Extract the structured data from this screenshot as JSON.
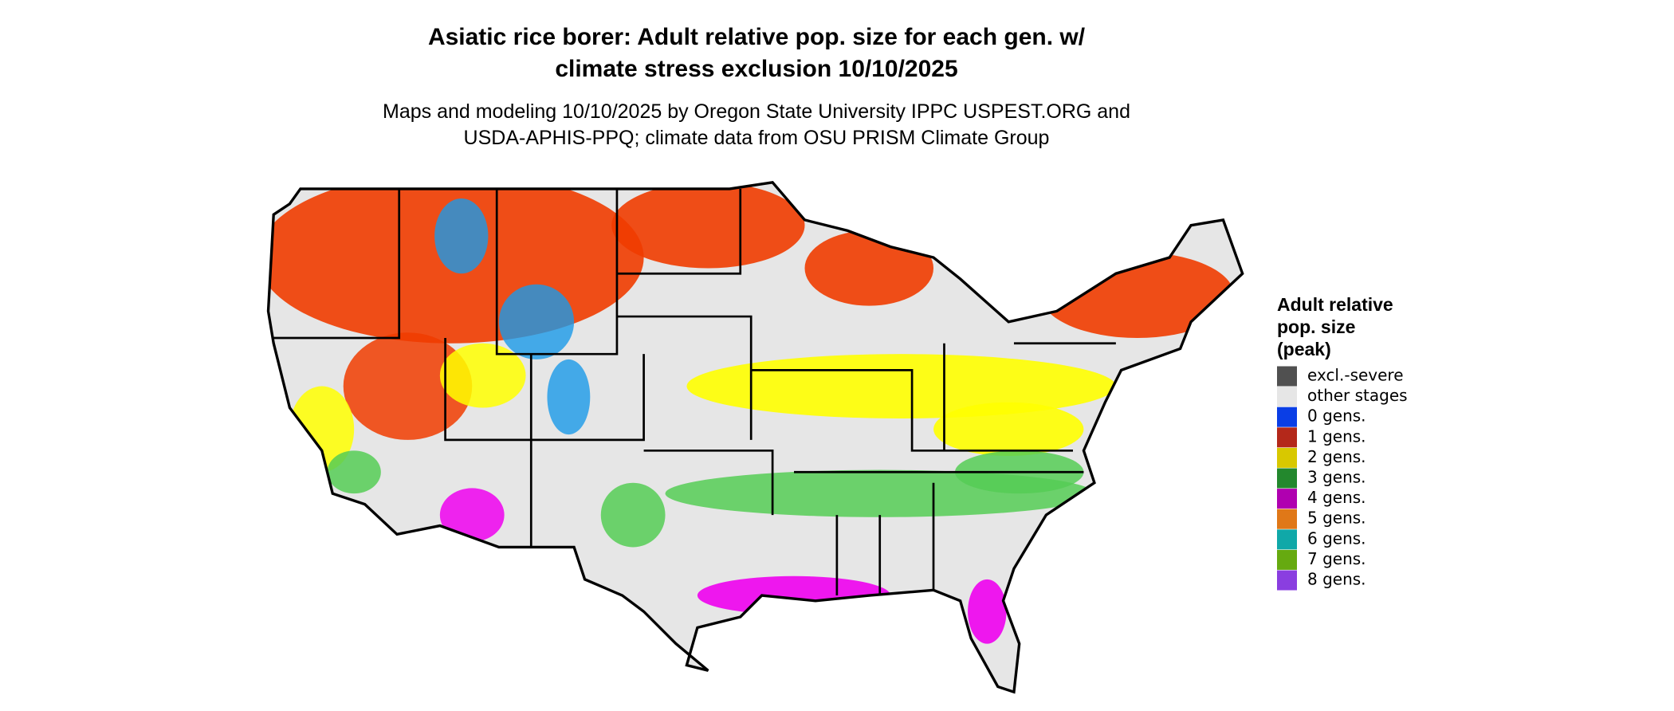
{
  "header": {
    "title": [
      "Asiatic rice borer: Adult relative pop. size for each gen. w/",
      "climate stress exclusion 10/10/2025"
    ],
    "subtitle": [
      "Maps and modeling 10/10/2025 by Oregon State University IPPC USPEST.ORG and",
      "USDA-APHIS-PPQ; climate data from OSU PRISM Climate Group"
    ]
  },
  "legend": {
    "title": [
      "Adult relative",
      "pop. size",
      "(peak)"
    ],
    "items": [
      {
        "label": "excl.-severe",
        "color": "#505050"
      },
      {
        "label": "other stages",
        "color": "#e6e6e6"
      },
      {
        "label": "0 gens.",
        "color": "#0a3ee6"
      },
      {
        "label": "1 gens.",
        "color": "#b4281a"
      },
      {
        "label": "2 gens.",
        "color": "#d8c800"
      },
      {
        "label": "3 gens.",
        "color": "#23882d"
      },
      {
        "label": "4 gens.",
        "color": "#b000b0"
      },
      {
        "label": "5 gens.",
        "color": "#e07818"
      },
      {
        "label": "6 gens.",
        "color": "#10a8a8"
      },
      {
        "label": "7 gens.",
        "color": "#66aa10"
      },
      {
        "label": "8 gens.",
        "color": "#8a3ee0"
      }
    ]
  }
}
